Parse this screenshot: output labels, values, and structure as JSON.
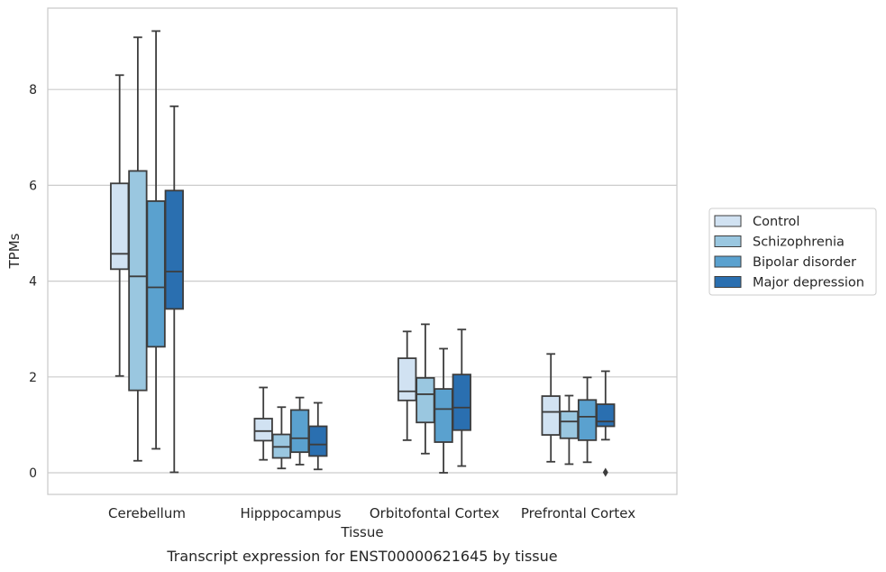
{
  "chart_data": {
    "type": "box",
    "xlabel": "Tissue",
    "ylabel": "TPMs",
    "caption": "Transcript expression for ENST00000621645 by tissue",
    "ylim": [
      -0.45,
      9.55
    ],
    "yticks": [
      0,
      2,
      4,
      6,
      8
    ],
    "grid": "horizontal",
    "legend_position": "right",
    "categories": [
      "Cerebellum",
      "Hipppocampus",
      "Orbitofontal Cortex",
      "Prefrontal Cortex"
    ],
    "series": [
      {
        "name": "Control",
        "color": "#d1e2f2",
        "boxes": [
          {
            "whislo": 2.02,
            "q1": 4.25,
            "med": 4.57,
            "q3": 6.04,
            "whishi": 8.3,
            "fliers": []
          },
          {
            "whislo": 0.27,
            "q1": 0.67,
            "med": 0.87,
            "q3": 1.13,
            "whishi": 1.78,
            "fliers": []
          },
          {
            "whislo": 0.68,
            "q1": 1.51,
            "med": 1.7,
            "q3": 2.39,
            "whishi": 2.95,
            "fliers": []
          },
          {
            "whislo": 0.23,
            "q1": 0.79,
            "med": 1.27,
            "q3": 1.6,
            "whishi": 2.48,
            "fliers": []
          }
        ]
      },
      {
        "name": "Schizophrenia",
        "color": "#9ac7e0",
        "boxes": [
          {
            "whislo": 0.25,
            "q1": 1.72,
            "med": 4.1,
            "q3": 6.3,
            "whishi": 9.09,
            "fliers": []
          },
          {
            "whislo": 0.09,
            "q1": 0.31,
            "med": 0.54,
            "q3": 0.8,
            "whishi": 1.37,
            "fliers": []
          },
          {
            "whislo": 0.4,
            "q1": 1.05,
            "med": 1.64,
            "q3": 1.98,
            "whishi": 3.1,
            "fliers": []
          },
          {
            "whislo": 0.18,
            "q1": 0.72,
            "med": 1.07,
            "q3": 1.28,
            "whishi": 1.61,
            "fliers": []
          }
        ]
      },
      {
        "name": "Bipolar disorder",
        "color": "#5aa1cf",
        "boxes": [
          {
            "whislo": 0.5,
            "q1": 2.63,
            "med": 3.87,
            "q3": 5.67,
            "whishi": 9.22,
            "fliers": []
          },
          {
            "whislo": 0.17,
            "q1": 0.43,
            "med": 0.72,
            "q3": 1.31,
            "whishi": 1.57,
            "fliers": []
          },
          {
            "whislo": 0.0,
            "q1": 0.64,
            "med": 1.33,
            "q3": 1.75,
            "whishi": 2.59,
            "fliers": []
          },
          {
            "whislo": 0.22,
            "q1": 0.68,
            "med": 1.17,
            "q3": 1.52,
            "whishi": 1.99,
            "fliers": []
          }
        ]
      },
      {
        "name": "Major depression",
        "color": "#2a6fb0",
        "boxes": [
          {
            "whislo": 0.01,
            "q1": 3.42,
            "med": 4.2,
            "q3": 5.89,
            "whishi": 7.65,
            "fliers": []
          },
          {
            "whislo": 0.07,
            "q1": 0.35,
            "med": 0.59,
            "q3": 0.97,
            "whishi": 1.46,
            "fliers": []
          },
          {
            "whislo": 0.14,
            "q1": 0.89,
            "med": 1.36,
            "q3": 2.05,
            "whishi": 2.99,
            "fliers": []
          },
          {
            "whislo": 0.69,
            "q1": 0.97,
            "med": 1.07,
            "q3": 1.43,
            "whishi": 2.12,
            "fliers": [
              0.01
            ]
          }
        ]
      }
    ]
  }
}
